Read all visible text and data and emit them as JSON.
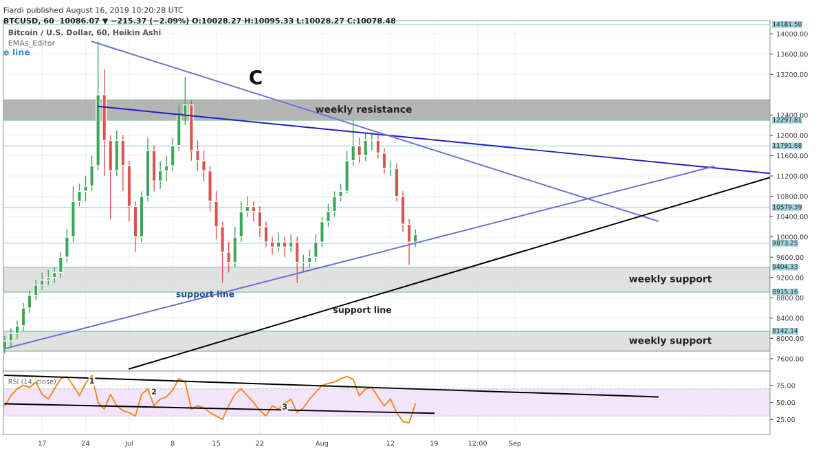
{
  "chart_data": [
    {
      "type": "candlestick",
      "title": "Fiardi published August 16, 2019 10:20:28 UTC",
      "subtitle": "BTCUSD, 60  10086.07 ▼ −215.37 (−2.09%) O:10028.27 H:10095.33 L:10028.27 C:10078.48",
      "x": [
        "2019-06-11",
        "2019-06-12",
        "2019-06-13",
        "2019-06-14",
        "2019-06-15",
        "2019-06-16",
        "2019-06-17",
        "2019-06-18",
        "2019-06-19",
        "2019-06-20",
        "2019-06-21",
        "2019-06-22",
        "2019-06-23",
        "2019-06-24",
        "2019-06-25",
        "2019-06-26",
        "2019-06-27",
        "2019-06-28",
        "2019-06-29",
        "2019-06-30",
        "2019-07-01",
        "2019-07-02",
        "2019-07-03",
        "2019-07-04",
        "2019-07-05",
        "2019-07-06",
        "2019-07-07",
        "2019-07-08",
        "2019-07-09",
        "2019-07-10",
        "2019-07-11",
        "2019-07-12",
        "2019-07-13",
        "2019-07-14",
        "2019-07-15",
        "2019-07-16",
        "2019-07-17",
        "2019-07-18",
        "2019-07-19",
        "2019-07-20",
        "2019-07-21",
        "2019-07-22",
        "2019-07-23",
        "2019-07-24",
        "2019-07-25",
        "2019-07-26",
        "2019-07-27",
        "2019-07-28",
        "2019-07-29",
        "2019-07-30",
        "2019-07-31",
        "2019-08-01",
        "2019-08-02",
        "2019-08-03",
        "2019-08-04",
        "2019-08-05",
        "2019-08-06",
        "2019-08-07",
        "2019-08-08",
        "2019-08-09",
        "2019-08-10",
        "2019-08-11",
        "2019-08-12",
        "2019-08-13",
        "2019-08-14",
        "2019-08-15",
        "2019-08-16"
      ],
      "ohlc": [
        [
          7800,
          8050,
          7700,
          7950
        ],
        [
          7950,
          8200,
          7850,
          8100
        ],
        [
          8100,
          8350,
          8000,
          8250
        ],
        [
          8250,
          8700,
          8150,
          8600
        ],
        [
          8600,
          8950,
          8500,
          8850
        ],
        [
          8850,
          9150,
          8750,
          9050
        ],
        [
          9050,
          9300,
          8950,
          9150
        ],
        [
          9150,
          9350,
          9050,
          9200
        ],
        [
          9200,
          9400,
          9100,
          9300
        ],
        [
          9300,
          9700,
          9200,
          9600
        ],
        [
          9600,
          10150,
          9500,
          10000
        ],
        [
          10000,
          11000,
          9900,
          10700
        ],
        [
          10700,
          11050,
          10600,
          10900
        ],
        [
          10900,
          11200,
          10700,
          11000
        ],
        [
          11000,
          11600,
          10900,
          11400
        ],
        [
          11400,
          13850,
          11300,
          12800
        ],
        [
          12800,
          13300,
          11200,
          11900
        ],
        [
          11900,
          12000,
          10350,
          11300
        ],
        [
          11300,
          12100,
          11200,
          11900
        ],
        [
          11900,
          12000,
          10900,
          11400
        ],
        [
          11400,
          11500,
          10300,
          10600
        ],
        [
          10600,
          10700,
          9700,
          10000
        ],
        [
          10000,
          10900,
          9900,
          10800
        ],
        [
          10800,
          11950,
          10700,
          11700
        ],
        [
          11700,
          11800,
          10900,
          11100
        ],
        [
          11100,
          11500,
          10950,
          11300
        ],
        [
          11300,
          11600,
          11100,
          11400
        ],
        [
          11400,
          11950,
          11300,
          11800
        ],
        [
          11800,
          12600,
          11700,
          12400
        ],
        [
          12400,
          13150,
          12200,
          12600
        ],
        [
          12600,
          12700,
          11500,
          11700
        ],
        [
          11700,
          11900,
          11300,
          11500
        ],
        [
          11500,
          11700,
          11100,
          11300
        ],
        [
          11300,
          11400,
          10500,
          10700
        ],
        [
          10700,
          10900,
          9950,
          10200
        ],
        [
          10200,
          10300,
          9100,
          9700
        ],
        [
          9700,
          9900,
          9300,
          9500
        ],
        [
          9500,
          10200,
          9400,
          10000
        ],
        [
          10000,
          10700,
          9900,
          10500
        ],
        [
          10500,
          10800,
          10400,
          10600
        ],
        [
          10600,
          10700,
          10300,
          10500
        ],
        [
          10500,
          10600,
          10000,
          10200
        ],
        [
          10200,
          10300,
          9800,
          9900
        ],
        [
          9900,
          10000,
          9650,
          9800
        ],
        [
          9800,
          10100,
          9700,
          9900
        ],
        [
          9900,
          10000,
          9600,
          9800
        ],
        [
          9800,
          10050,
          9700,
          9900
        ],
        [
          9900,
          10000,
          9100,
          9500
        ],
        [
          9500,
          9650,
          9300,
          9500
        ],
        [
          9500,
          9750,
          9400,
          9600
        ],
        [
          9600,
          10050,
          9500,
          9900
        ],
        [
          9900,
          10400,
          9800,
          10300
        ],
        [
          10300,
          10650,
          10200,
          10500
        ],
        [
          10500,
          10900,
          10400,
          10800
        ],
        [
          10800,
          11050,
          10700,
          10900
        ],
        [
          10900,
          11700,
          10850,
          11500
        ],
        [
          11500,
          12300,
          11400,
          11800
        ],
        [
          11800,
          11950,
          11450,
          11600
        ],
        [
          11600,
          12050,
          11500,
          11900
        ],
        [
          11900,
          12050,
          11700,
          11900
        ],
        [
          11900,
          12000,
          11550,
          11650
        ],
        [
          11650,
          11750,
          11250,
          11350
        ],
        [
          11350,
          11500,
          11200,
          11350
        ],
        [
          11350,
          11450,
          10700,
          10800
        ],
        [
          10800,
          10900,
          10100,
          10250
        ],
        [
          10250,
          10350,
          9450,
          9900
        ],
        [
          9900,
          10150,
          9800,
          10050
        ]
      ],
      "series": [
        {
          "type": "line",
          "color": "#1f1fbf",
          "x": [
            "2019-06-26",
            "2019-10-12"
          ],
          "values": [
            12570,
            11250
          ]
        },
        {
          "type": "line",
          "color": "#6f6fd6",
          "x": [
            "2019-06-25",
            "2019-09-24"
          ],
          "values": [
            13850,
            10310
          ]
        },
        {
          "type": "line",
          "color": "#6f6fd6",
          "x": [
            "2019-06-11",
            "2019-10-03"
          ],
          "values": [
            7800,
            11390
          ]
        },
        {
          "type": "line",
          "color": "#000000",
          "x": [
            "2019-07-01",
            "2019-10-12"
          ],
          "values": [
            7400,
            11170
          ]
        }
      ],
      "xlim": [
        "2019-06-10T19:00",
        "2019-10-12"
      ],
      "xticks": [
        {
          "value": "2019-06-17",
          "label": null
        },
        {
          "value": "2019-06-24",
          "label": null
        },
        {
          "value": "2019-07-01",
          "label": null
        },
        {
          "value": "2019-07-08",
          "label": null
        },
        {
          "value": "2019-07-15",
          "label": null
        },
        {
          "value": "2019-07-22",
          "label": null
        },
        {
          "value": "2019-08-01",
          "label": null
        },
        {
          "value": "2019-08-12",
          "label": null
        },
        {
          "value": "2019-08-19",
          "label": null
        },
        {
          "value": "2019-08-26",
          "label": null
        },
        {
          "value": "2019-09-01",
          "label": null
        }
      ],
      "ylim": [
        7356,
        14260
      ],
      "yticks": [
        {
          "value": 7600,
          "label": "7600.00"
        },
        {
          "value": 8000,
          "label": "8000.00"
        },
        {
          "value": 8400,
          "label": "8400.00"
        },
        {
          "value": 8800,
          "label": "8800.00"
        },
        {
          "value": 9200,
          "label": "9200.00"
        },
        {
          "value": 9600,
          "label": "9600.00"
        },
        {
          "value": 10000,
          "label": "10000.00"
        },
        {
          "value": 10400,
          "label": "10400.00"
        },
        {
          "value": 10800,
          "label": "10800.00"
        },
        {
          "value": 11200,
          "label": "11200.00"
        },
        {
          "value": 11600,
          "label": "11600.00"
        },
        {
          "value": 12000,
          "label": "12000.00"
        },
        {
          "value": 12400,
          "label": "12400.00"
        },
        {
          "value": 13200,
          "label": "13200.00"
        },
        {
          "value": 13600,
          "label": "13600.00"
        },
        {
          "value": 14000,
          "label": "14000.00"
        }
      ],
      "ref_lines": [
        {
          "axis": "y",
          "value": 14181.5,
          "label": "14181.50",
          "color": "#9fd4dc"
        },
        {
          "axis": "y",
          "value": 12297.81,
          "label": "12297.81",
          "color": "#9fd4dc"
        },
        {
          "axis": "y",
          "value": 11791.68,
          "label": "11791.68",
          "color": "#9fd4dc"
        },
        {
          "axis": "y",
          "value": 10579.39,
          "label": "10579.39",
          "color": "#9fd4dc"
        },
        {
          "axis": "y",
          "value": 9873.25,
          "label": "9873.25",
          "color": "#9fd4dc"
        },
        {
          "axis": "y",
          "value": 9404.33,
          "label": "9404.33",
          "color": "#9fd4dc"
        },
        {
          "axis": "y",
          "value": 8915.16,
          "label": "8915.16",
          "color": "#9fd4dc"
        },
        {
          "axis": "y",
          "value": 8142.14,
          "label": "8142.14",
          "color": "#9fd4dc"
        }
      ],
      "bands": [
        {
          "axis": "y",
          "from": 12297.81,
          "to": 12700,
          "label": "weekly resistance",
          "color": "#a9a9a9"
        },
        {
          "axis": "y",
          "from": 8915.16,
          "to": 9404.33,
          "label": "weekly support",
          "color": "#dcdcdc"
        },
        {
          "axis": "y",
          "from": 7750,
          "to": 8142.14,
          "label": "weekly support",
          "color": "#dcdcdc"
        }
      ],
      "annotations": [
        "Bitcoin / U.S. Dollar, 60, Heikin Ashi",
        "EMAs_Editor",
        "e line",
        "C",
        "support line",
        "support line"
      ],
      "grid": true,
      "tick_labels": "y"
    },
    {
      "type": "line",
      "x": [
        "2019-06-11",
        "2019-06-12",
        "2019-06-13",
        "2019-06-14",
        "2019-06-15",
        "2019-06-16",
        "2019-06-17",
        "2019-06-18",
        "2019-06-19",
        "2019-06-20",
        "2019-06-21",
        "2019-06-22",
        "2019-06-23",
        "2019-06-24",
        "2019-06-25",
        "2019-06-26",
        "2019-06-27",
        "2019-06-28",
        "2019-06-29",
        "2019-06-30",
        "2019-07-01",
        "2019-07-02",
        "2019-07-03",
        "2019-07-04",
        "2019-07-05",
        "2019-07-06",
        "2019-07-07",
        "2019-07-08",
        "2019-07-09",
        "2019-07-10",
        "2019-07-11",
        "2019-07-12",
        "2019-07-13",
        "2019-07-14",
        "2019-07-15",
        "2019-07-16",
        "2019-07-17",
        "2019-07-18",
        "2019-07-19",
        "2019-07-20",
        "2019-07-21",
        "2019-07-22",
        "2019-07-23",
        "2019-07-24",
        "2019-07-25",
        "2019-07-26",
        "2019-07-27",
        "2019-07-28",
        "2019-07-29",
        "2019-07-30",
        "2019-07-31",
        "2019-08-01",
        "2019-08-02",
        "2019-08-03",
        "2019-08-04",
        "2019-08-05",
        "2019-08-06",
        "2019-08-07",
        "2019-08-08",
        "2019-08-09",
        "2019-08-10",
        "2019-08-11",
        "2019-08-12",
        "2019-08-13",
        "2019-08-14",
        "2019-08-15",
        "2019-08-16"
      ],
      "series": [
        {
          "color": "#f08a24",
          "values": [
            45,
            60,
            70,
            75,
            72,
            80,
            62,
            55,
            70,
            85,
            88,
            75,
            60,
            78,
            90,
            50,
            40,
            62,
            45,
            38,
            35,
            30,
            62,
            70,
            45,
            55,
            58,
            68,
            85,
            80,
            40,
            45,
            42,
            35,
            30,
            25,
            45,
            62,
            70,
            60,
            50,
            38,
            30,
            45,
            40,
            48,
            55,
            35,
            42,
            55,
            65,
            75,
            78,
            80,
            85,
            88,
            84,
            60,
            70,
            72,
            58,
            45,
            55,
            35,
            22,
            20,
            48
          ]
        },
        {
          "color": "#000000",
          "x": [
            "2019-06-11",
            "2019-09-24"
          ],
          "values": [
            90,
            58
          ]
        },
        {
          "color": "#000000",
          "x": [
            "2019-06-11",
            "2019-08-19"
          ],
          "values": [
            48,
            34
          ]
        }
      ],
      "xlim": [
        "2019-06-10T19:00",
        "2019-10-12"
      ],
      "xticks": [
        {
          "value": "2019-06-17",
          "label": "17"
        },
        {
          "value": "2019-06-24",
          "label": "24"
        },
        {
          "value": "2019-07-01",
          "label": "Jul"
        },
        {
          "value": "2019-07-08",
          "label": "8"
        },
        {
          "value": "2019-07-15",
          "label": "15"
        },
        {
          "value": "2019-07-22",
          "label": "22"
        },
        {
          "value": "2019-08-01",
          "label": "Aug"
        },
        {
          "value": "2019-08-12",
          "label": "12"
        },
        {
          "value": "2019-08-19",
          "label": "19"
        },
        {
          "value": "2019-08-26",
          "label": "12:00"
        },
        {
          "value": "2019-09-01",
          "label": "Sep"
        }
      ],
      "ylim": [
        3,
        96
      ],
      "yticks": [
        {
          "value": 25,
          "label": "25.00"
        },
        {
          "value": 50,
          "label": "50.00"
        },
        {
          "value": 75,
          "label": "75.00"
        }
      ],
      "bands": [
        {
          "axis": "y",
          "from": 30,
          "to": 70,
          "color": "#f0e0fa"
        }
      ],
      "annotations": [
        "RSI (14, close)",
        {
          "text": "1",
          "x": "2019-06-25",
          "y": 81
        },
        {
          "text": "2",
          "x": "2019-07-05",
          "y": 65
        },
        {
          "text": "3",
          "x": "2019-07-26",
          "y": 43
        }
      ],
      "grid": true
    }
  ]
}
